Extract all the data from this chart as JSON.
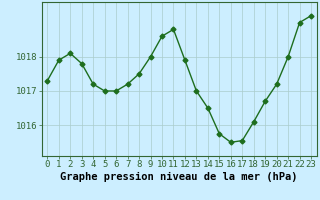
{
  "x": [
    0,
    1,
    2,
    3,
    4,
    5,
    6,
    7,
    8,
    9,
    10,
    11,
    12,
    13,
    14,
    15,
    16,
    17,
    18,
    19,
    20,
    21,
    22,
    23
  ],
  "y": [
    1017.3,
    1017.9,
    1018.1,
    1017.8,
    1017.2,
    1017.0,
    1017.0,
    1017.2,
    1017.5,
    1018.0,
    1018.6,
    1018.8,
    1017.9,
    1017.0,
    1016.5,
    1015.75,
    1015.5,
    1015.55,
    1016.1,
    1016.7,
    1017.2,
    1018.0,
    1019.0,
    1019.2
  ],
  "line_color": "#1e6e1e",
  "marker": "D",
  "markersize": 2.5,
  "linewidth": 1.0,
  "bg_color": "#cceeff",
  "grid_color": "#aacccc",
  "xlabel": "Graphe pression niveau de la mer (hPa)",
  "xlabel_fontsize": 7.5,
  "ytick_labels": [
    "1016",
    "1017",
    "1018"
  ],
  "yticks": [
    1016,
    1017,
    1018
  ],
  "ylim": [
    1015.1,
    1019.6
  ],
  "xlim": [
    -0.5,
    23.5
  ],
  "tick_fontsize": 6.5,
  "spine_color": "#336633"
}
